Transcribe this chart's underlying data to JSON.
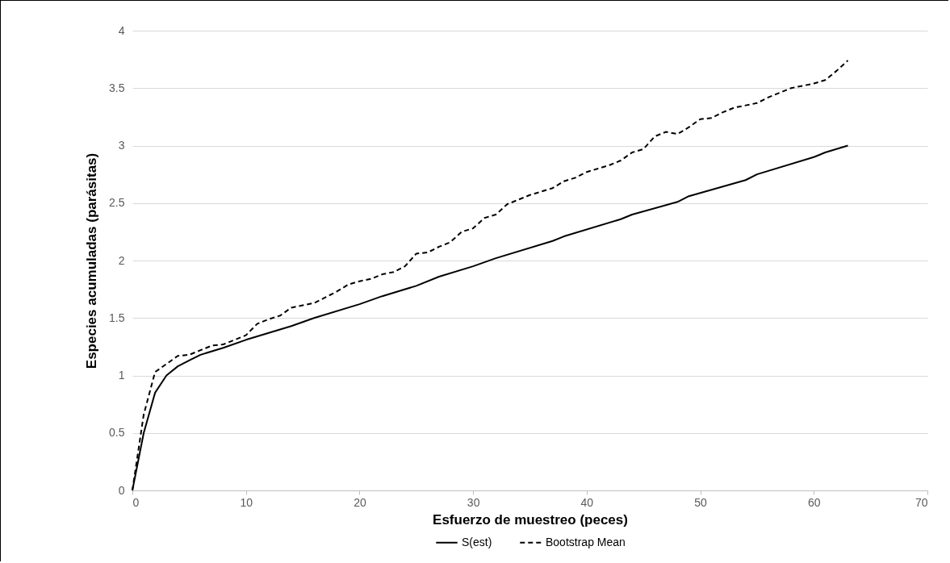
{
  "chart_data": {
    "type": "line",
    "xlabel": "Esfuerzo de muestreo (peces)",
    "ylabel": "Especies acumuladas (parásitas)",
    "xlim": [
      0,
      70
    ],
    "xticks": [
      0,
      10,
      20,
      30,
      40,
      50,
      60,
      70
    ],
    "ylim": [
      0,
      4
    ],
    "yticks": [
      0,
      0.5,
      1,
      1.5,
      2,
      2.5,
      3,
      3.5,
      4
    ],
    "grid": "y",
    "legend": "bottom",
    "marker": "none",
    "series": [
      {
        "name": "S(est)",
        "color": "#000000",
        "line_style": "solid",
        "x": [
          0,
          1,
          2,
          3,
          4,
          5,
          6,
          8,
          10,
          14,
          16,
          20,
          22,
          25,
          27,
          30,
          32,
          37,
          38,
          43,
          44,
          48,
          49,
          54,
          55,
          60,
          61,
          63
        ],
        "values": [
          0,
          0.5,
          0.85,
          1.0,
          1.08,
          1.13,
          1.18,
          1.24,
          1.31,
          1.43,
          1.5,
          1.62,
          1.69,
          1.78,
          1.86,
          1.95,
          2.02,
          2.17,
          2.21,
          2.36,
          2.4,
          2.51,
          2.56,
          2.7,
          2.75,
          2.9,
          2.94,
          3.0
        ]
      },
      {
        "name": "Bootstrap Mean",
        "color": "#000000",
        "line_style": "dashed",
        "x": [
          0,
          1,
          2,
          3,
          4,
          5,
          6,
          7,
          8,
          9,
          10,
          11,
          12,
          13,
          14,
          15,
          16,
          17,
          18,
          19,
          20,
          21,
          22,
          23,
          24,
          25,
          26,
          27,
          28,
          29,
          30,
          31,
          32,
          33,
          34,
          35,
          36,
          37,
          38,
          39,
          40,
          41,
          42,
          43,
          44,
          45,
          46,
          47,
          48,
          49,
          50,
          51,
          52,
          53,
          54,
          55,
          56,
          57,
          58,
          59,
          60,
          61,
          62,
          63
        ],
        "values": [
          0,
          0.66,
          1.03,
          1.1,
          1.17,
          1.18,
          1.22,
          1.26,
          1.27,
          1.31,
          1.35,
          1.45,
          1.49,
          1.52,
          1.59,
          1.61,
          1.63,
          1.68,
          1.73,
          1.79,
          1.82,
          1.84,
          1.88,
          1.9,
          1.95,
          2.06,
          2.07,
          2.12,
          2.16,
          2.25,
          2.28,
          2.37,
          2.4,
          2.49,
          2.53,
          2.57,
          2.6,
          2.63,
          2.69,
          2.72,
          2.77,
          2.8,
          2.83,
          2.87,
          2.94,
          2.97,
          3.08,
          3.12,
          3.1,
          3.16,
          3.23,
          3.24,
          3.29,
          3.33,
          3.35,
          3.37,
          3.42,
          3.46,
          3.5,
          3.52,
          3.54,
          3.57,
          3.65,
          3.74
        ]
      }
    ]
  }
}
